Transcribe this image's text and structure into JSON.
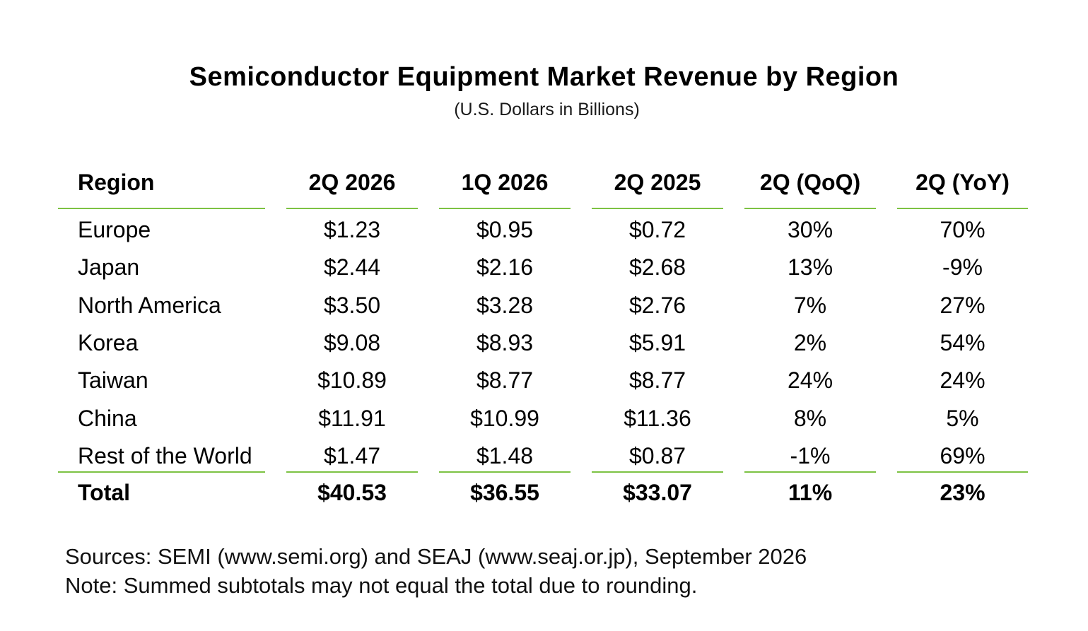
{
  "title": "Semiconductor Equipment Market Revenue by Region",
  "subtitle": "(U.S. Dollars in Billions)",
  "colors": {
    "rule": "#7dc243",
    "text": "#000000",
    "background": "#ffffff"
  },
  "chart_data": {
    "type": "table",
    "title": "Semiconductor Equipment Market Revenue by Region",
    "subtitle": "(U.S. Dollars in Billions)",
    "columns": [
      "Region",
      "2Q 2026",
      "1Q 2026",
      "2Q 2025",
      "2Q (QoQ)",
      "2Q (YoY)"
    ],
    "rows": [
      [
        "Europe",
        "$1.23",
        "$0.95",
        "$0.72",
        "30%",
        "70%"
      ],
      [
        "Japan",
        "$2.44",
        "$2.16",
        "$2.68",
        "13%",
        "-9%"
      ],
      [
        "North America",
        "$3.50",
        "$3.28",
        "$2.76",
        "7%",
        "27%"
      ],
      [
        "Korea",
        "$9.08",
        "$8.93",
        "$5.91",
        "2%",
        "54%"
      ],
      [
        "Taiwan",
        "$10.89",
        "$8.77",
        "$8.77",
        "24%",
        "24%"
      ],
      [
        "China",
        "$11.91",
        "$10.99",
        "$11.36",
        "8%",
        "5%"
      ],
      [
        "Rest of the World",
        "$1.47",
        "$1.48",
        "$0.87",
        "-1%",
        "69%"
      ]
    ],
    "total": [
      "Total",
      "$40.53",
      "$36.55",
      "$33.07",
      "11%",
      "23%"
    ]
  },
  "footer": {
    "sources": "Sources: SEMI (www.semi.org) and SEAJ (www.seaj.or.jp), September 2026",
    "note": "Note: Summed subtotals may not equal the total due to rounding."
  }
}
